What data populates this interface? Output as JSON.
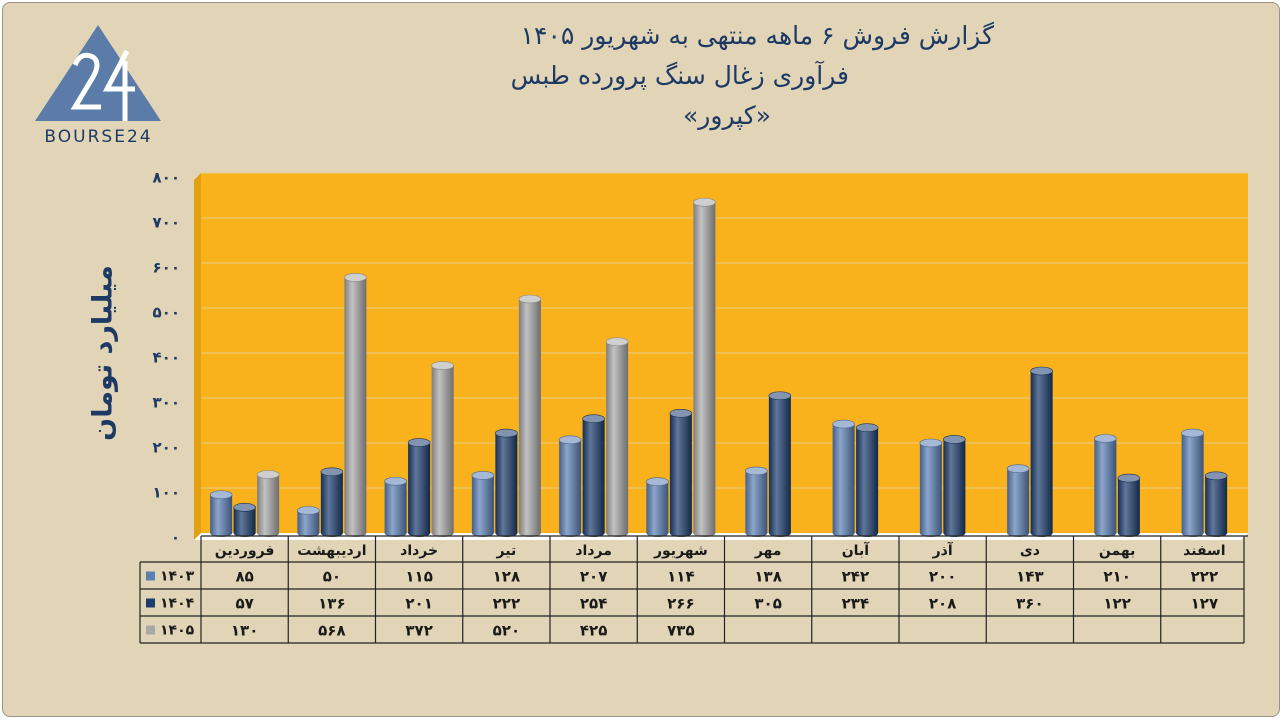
{
  "header": {
    "title_line1": "گزارش  فروش ۶ ماهه منتهی به شهریور ۱۴۰۵",
    "title_line2": "فرآوری زغال سنگ پرورده طبس",
    "title_line3": "«کپرور»"
  },
  "logo": {
    "mark": "24",
    "text": "BOURSE24",
    "colors": {
      "triangle": "#5b7ca8",
      "strokes": "#ffffff"
    }
  },
  "chart_data": {
    "type": "bar",
    "ylabel": "میلیارد تومان",
    "ylim": [
      0,
      800
    ],
    "yticks": [
      0,
      100,
      200,
      300,
      400,
      500,
      600,
      700,
      800
    ],
    "ytick_labels": [
      "۰",
      "۱۰۰",
      "۲۰۰",
      "۳۰۰",
      "۴۰۰",
      "۵۰۰",
      "۶۰۰",
      "۷۰۰",
      "۸۰۰"
    ],
    "grid": true,
    "legend": "data-table",
    "categories": [
      "فروردین",
      "اردیبهشت",
      "خرداد",
      "تیر",
      "مرداد",
      "شهریور",
      "مهر",
      "آبان",
      "آذر",
      "دی",
      "بهمن",
      "اسفند"
    ],
    "series": [
      {
        "name": "۱۴۰۳",
        "color": "#5b7fb5",
        "values": [
          85,
          50,
          115,
          128,
          207,
          114,
          138,
          242,
          200,
          143,
          210,
          222
        ],
        "labels": [
          "۸۵",
          "۵۰",
          "۱۱۵",
          "۱۲۸",
          "۲۰۷",
          "۱۱۴",
          "۱۳۸",
          "۲۴۲",
          "۲۰۰",
          "۱۴۳",
          "۲۱۰",
          "۲۲۲"
        ]
      },
      {
        "name": "۱۴۰۴",
        "color": "#1c3d6e",
        "values": [
          57,
          136,
          201,
          222,
          254,
          266,
          305,
          234,
          208,
          360,
          122,
          127
        ],
        "labels": [
          "۵۷",
          "۱۳۶",
          "۲۰۱",
          "۲۲۲",
          "۲۵۴",
          "۲۶۶",
          "۳۰۵",
          "۲۳۴",
          "۲۰۸",
          "۳۶۰",
          "۱۲۲",
          "۱۲۷"
        ]
      },
      {
        "name": "۱۴۰۵",
        "color": "#a8a8a8",
        "values": [
          130,
          568,
          372,
          520,
          425,
          735,
          null,
          null,
          null,
          null,
          null,
          null
        ],
        "labels": [
          "۱۳۰",
          "۵۶۸",
          "۳۷۲",
          "۵۲۰",
          "۴۲۵",
          "۷۳۵",
          "",
          "",
          "",
          "",
          "",
          ""
        ]
      }
    ],
    "colors": {
      "plot_background": "#f9b21c",
      "grid": "#e8cf8a",
      "floor": "#ffffff",
      "wall": "#e2a010"
    }
  }
}
